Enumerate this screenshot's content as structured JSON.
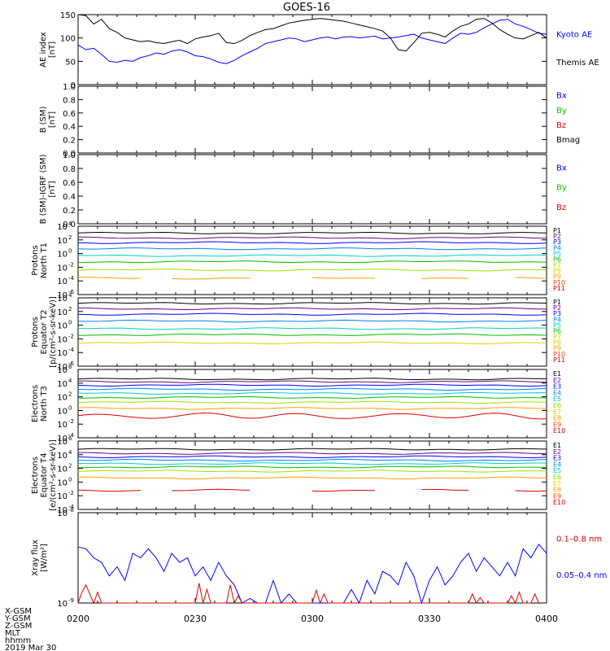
{
  "title": "GOES-16",
  "date_label": "2019 Mar 30",
  "footer_labels": [
    "X-GSM",
    "Y-GSM",
    "Z-GSM",
    "MLT",
    "hhmm"
  ],
  "x_ticks": [
    "0200",
    "0230",
    "0300",
    "0330",
    "0400"
  ],
  "colors": {
    "black": "#000000",
    "blue": "#0000ff",
    "green": "#00cc00",
    "red": "#dd0000"
  },
  "chart_data": [
    {
      "type": "line",
      "ylabel": "AE index",
      "yunit": "[nT]",
      "ylim": [
        0,
        150
      ],
      "yticks": [
        "0",
        "50",
        "100",
        "150"
      ],
      "x_range": [
        "0200",
        "0400"
      ],
      "legend": [
        {
          "label": "Kyoto AE",
          "color": "#0000ff"
        },
        {
          "label": "Themis AE",
          "color": "#000000"
        }
      ],
      "series": [
        {
          "name": "Kyoto AE",
          "color": "#0000ff",
          "x_minutes": [
            0,
            2,
            4,
            6,
            8,
            10,
            12,
            14,
            16,
            18,
            20,
            22,
            24,
            26,
            28,
            30,
            32,
            34,
            36,
            38,
            40,
            42,
            44,
            46,
            48,
            50,
            52,
            54,
            56,
            58,
            60,
            62,
            64,
            66,
            68,
            70,
            72,
            74,
            76,
            78,
            80,
            82,
            84,
            86,
            88,
            90,
            92,
            94,
            96,
            98,
            100,
            102,
            104,
            106,
            108,
            110,
            112,
            114,
            116,
            118,
            120
          ],
          "values": [
            85,
            75,
            78,
            65,
            50,
            48,
            52,
            50,
            58,
            62,
            68,
            65,
            72,
            75,
            70,
            62,
            60,
            55,
            48,
            45,
            52,
            62,
            70,
            78,
            88,
            92,
            96,
            100,
            98,
            92,
            96,
            100,
            102,
            98,
            102,
            103,
            100,
            102,
            104,
            98,
            100,
            102,
            105,
            108,
            100,
            96,
            92,
            88,
            100,
            110,
            108,
            112,
            122,
            130,
            138,
            140,
            130,
            125,
            118,
            110,
            108
          ]
        },
        {
          "name": "Themis AE",
          "color": "#000000",
          "x_minutes": [
            0,
            2,
            4,
            6,
            8,
            10,
            12,
            14,
            16,
            18,
            20,
            22,
            24,
            26,
            28,
            30,
            32,
            34,
            36,
            38,
            40,
            42,
            44,
            46,
            48,
            50,
            52,
            54,
            56,
            58,
            60,
            62,
            64,
            66,
            68,
            70,
            72,
            74,
            76,
            78,
            80,
            82,
            84,
            86,
            88,
            90,
            92,
            94,
            96,
            98,
            100,
            102,
            104,
            106,
            108,
            110,
            112,
            114,
            116,
            118,
            120
          ],
          "values": [
            150,
            148,
            130,
            140,
            120,
            112,
            100,
            96,
            92,
            94,
            90,
            88,
            92,
            95,
            88,
            98,
            102,
            105,
            110,
            90,
            88,
            95,
            105,
            112,
            118,
            120,
            126,
            132,
            135,
            138,
            140,
            142,
            140,
            138,
            136,
            132,
            128,
            124,
            120,
            115,
            100,
            75,
            72,
            90,
            110,
            112,
            108,
            102,
            115,
            125,
            130,
            140,
            142,
            132,
            118,
            108,
            100,
            98,
            105,
            112,
            100
          ]
        }
      ]
    },
    {
      "type": "line",
      "ylabel": "B (SM)",
      "yunit": "[nT]",
      "ylim": [
        0,
        1
      ],
      "yticks": [
        "0.0",
        "0.2",
        "0.4",
        "0.6",
        "0.8",
        "1.0"
      ],
      "legend": [
        {
          "label": "Bx",
          "color": "#0000ff"
        },
        {
          "label": "By",
          "color": "#00cc00"
        },
        {
          "label": "Bz",
          "color": "#dd0000"
        },
        {
          "label": "Bmag",
          "color": "#000000"
        }
      ],
      "series": []
    },
    {
      "type": "line",
      "ylabel": "B (SM)-IGRF (SM)",
      "yunit": "[nT]",
      "ylim": [
        0,
        1
      ],
      "yticks": [
        "0.0",
        "0.2",
        "0.4",
        "0.6",
        "0.8",
        "1.0"
      ],
      "legend": [
        {
          "label": "Bx",
          "color": "#0000ff"
        },
        {
          "label": "By",
          "color": "#00cc00"
        },
        {
          "label": "Bz",
          "color": "#dd0000"
        }
      ],
      "series": []
    },
    {
      "type": "line",
      "yscale": "log",
      "ylabel": "Protons",
      "ylabel2": "North T1",
      "yunit": "",
      "ylim_exp": [
        -6,
        4
      ],
      "yticks_exp": [
        -6,
        -4,
        -2,
        0,
        2,
        4
      ],
      "legend": [
        {
          "label": "P1",
          "color": "#000000"
        },
        {
          "label": "P2",
          "color": "#6a0080"
        },
        {
          "label": "P3",
          "color": "#0000ff"
        },
        {
          "label": "P4",
          "color": "#0080ff"
        },
        {
          "label": "P5",
          "color": "#00cccc"
        },
        {
          "label": "P6",
          "color": "#00bb00"
        },
        {
          "label": "P7",
          "color": "#a0e000"
        },
        {
          "label": "P8",
          "color": "#e0d000"
        },
        {
          "label": "P9",
          "color": "#ffa000"
        },
        {
          "label": "P10",
          "color": "#ff4000"
        },
        {
          "label": "P11",
          "color": "#cc0000"
        }
      ],
      "series": [
        {
          "name": "P1",
          "color": "#000000",
          "level": 3.0
        },
        {
          "name": "P2",
          "color": "#6a0080",
          "level": 2.3
        },
        {
          "name": "P3",
          "color": "#0000ff",
          "level": 1.6
        },
        {
          "name": "P4",
          "color": "#0080ff",
          "level": 0.7
        },
        {
          "name": "P5",
          "color": "#00cccc",
          "level": -0.3
        },
        {
          "name": "P6",
          "color": "#00bb00",
          "level": -1.2
        },
        {
          "name": "P7",
          "color": "#a0e000",
          "level": -2.4
        },
        {
          "name": "P8",
          "color": "#ffa000",
          "level": -3.6,
          "gappy": true
        }
      ]
    },
    {
      "type": "line",
      "yscale": "log",
      "ylabel": "Protons",
      "ylabel2": "Equator T2",
      "yunit": "[p/(cm²-s-sr-keV)]",
      "ylim_exp": [
        -6,
        4
      ],
      "yticks_exp": [
        -6,
        -4,
        -2,
        0,
        2,
        4
      ],
      "legend": [
        {
          "label": "P1",
          "color": "#000000"
        },
        {
          "label": "P2",
          "color": "#6a0080"
        },
        {
          "label": "P3",
          "color": "#0000ff"
        },
        {
          "label": "P4",
          "color": "#0080ff"
        },
        {
          "label": "P5",
          "color": "#00cccc"
        },
        {
          "label": "P6",
          "color": "#00bb00"
        },
        {
          "label": "P7",
          "color": "#a0e000"
        },
        {
          "label": "P8",
          "color": "#e0d000"
        },
        {
          "label": "P9",
          "color": "#ffa000"
        },
        {
          "label": "P10",
          "color": "#ff4000"
        },
        {
          "label": "P11",
          "color": "#cc0000"
        }
      ],
      "series": [
        {
          "name": "P1",
          "color": "#000000",
          "level": 3.2
        },
        {
          "name": "P2",
          "color": "#6a0080",
          "level": 2.4
        },
        {
          "name": "P3",
          "color": "#0000ff",
          "level": 1.6
        },
        {
          "name": "P4",
          "color": "#0080ff",
          "level": 0.6
        },
        {
          "name": "P5",
          "color": "#00cccc",
          "level": -0.5
        },
        {
          "name": "P6",
          "color": "#00bb00",
          "level": -1.4
        },
        {
          "name": "P7",
          "color": "#e0d000",
          "level": -2.6
        }
      ]
    },
    {
      "type": "line",
      "yscale": "log",
      "ylabel": "Electrons",
      "ylabel2": "North T3",
      "yunit": "",
      "ylim_exp": [
        -4,
        6
      ],
      "yticks_exp": [
        -4,
        -2,
        0,
        2,
        4,
        6
      ],
      "legend": [
        {
          "label": "E1",
          "color": "#000000"
        },
        {
          "label": "E2",
          "color": "#6a0080"
        },
        {
          "label": "E3",
          "color": "#0000ff"
        },
        {
          "label": "E4",
          "color": "#0080ff"
        },
        {
          "label": "E5",
          "color": "#00cccc"
        },
        {
          "label": "E6",
          "color": "#a0e000"
        },
        {
          "label": "E7",
          "color": "#e0d000"
        },
        {
          "label": "E8",
          "color": "#ffa000"
        },
        {
          "label": "E9",
          "color": "#ff4000"
        },
        {
          "label": "E10",
          "color": "#cc0000"
        }
      ],
      "series": [
        {
          "name": "E1",
          "color": "#000000",
          "level": 4.6
        },
        {
          "name": "E2",
          "color": "#6a0080",
          "level": 4.2
        },
        {
          "name": "E3",
          "color": "#0000ff",
          "level": 3.7
        },
        {
          "name": "E4",
          "color": "#0080ff",
          "level": 3.1
        },
        {
          "name": "E5",
          "color": "#00cccc",
          "level": 2.5
        },
        {
          "name": "E6",
          "color": "#00bb00",
          "level": 1.9
        },
        {
          "name": "E7",
          "color": "#a0e000",
          "level": 1.2
        },
        {
          "name": "E8",
          "color": "#ffa000",
          "level": 0.3
        },
        {
          "name": "E9",
          "color": "#dd0000",
          "level": -0.8,
          "wavy": true
        }
      ]
    },
    {
      "type": "line",
      "yscale": "log",
      "ylabel": "Electrons",
      "ylabel2": "Equator T4",
      "yunit": "[e/(cm²-s-sr-keV)]",
      "ylim_exp": [
        -4,
        6
      ],
      "yticks_exp": [
        -4,
        -2,
        0,
        2,
        4,
        6
      ],
      "legend": [
        {
          "label": "E1",
          "color": "#000000"
        },
        {
          "label": "E2",
          "color": "#6a0080"
        },
        {
          "label": "E3",
          "color": "#0000ff"
        },
        {
          "label": "E4",
          "color": "#0080ff"
        },
        {
          "label": "E5",
          "color": "#00cccc"
        },
        {
          "label": "E6",
          "color": "#a0e000"
        },
        {
          "label": "E7",
          "color": "#e0d000"
        },
        {
          "label": "E8",
          "color": "#ffa000"
        },
        {
          "label": "E9",
          "color": "#ff4000"
        },
        {
          "label": "E10",
          "color": "#cc0000"
        }
      ],
      "series": [
        {
          "name": "E1",
          "color": "#000000",
          "level": 4.8
        },
        {
          "name": "E2",
          "color": "#6a0080",
          "level": 4.2
        },
        {
          "name": "E3",
          "color": "#0000ff",
          "level": 3.7
        },
        {
          "name": "E4",
          "color": "#0080ff",
          "level": 3.2
        },
        {
          "name": "E5",
          "color": "#00cccc",
          "level": 2.7
        },
        {
          "name": "E6",
          "color": "#00bb00",
          "level": 2.2
        },
        {
          "name": "E7",
          "color": "#a0e000",
          "level": 1.6
        },
        {
          "name": "E8",
          "color": "#ffa000",
          "level": 0.6
        },
        {
          "name": "E9",
          "color": "#dd0000",
          "level": -1.2,
          "gappy": true
        }
      ]
    },
    {
      "type": "line",
      "yscale": "log",
      "ylabel": "Xray flux",
      "yunit": "[W/m²]",
      "ylim_exp": [
        -9,
        -8
      ],
      "yticks_exp": [
        -9,
        -8
      ],
      "legend": [
        {
          "label": "0.1–0.8 nm",
          "color": "#dd0000"
        },
        {
          "label": "0.05–0.4 nm",
          "color": "#0000ff"
        }
      ],
      "series": [
        {
          "name": "0.05–0.4 nm",
          "color": "#0000ff",
          "x_minutes": [
            0,
            2,
            4,
            6,
            8,
            10,
            12,
            14,
            16,
            18,
            20,
            22,
            24,
            26,
            28,
            30,
            32,
            34,
            36,
            38,
            40,
            42,
            44,
            46,
            48,
            50,
            52,
            54,
            56,
            58,
            60,
            62,
            64,
            66,
            68,
            70,
            72,
            74,
            76,
            78,
            80,
            82,
            84,
            86,
            88,
            90,
            92,
            94,
            96,
            98,
            100,
            102,
            104,
            106,
            108,
            110,
            112,
            114,
            116,
            118,
            120
          ],
          "values": [
            0.62,
            0.6,
            0.5,
            0.45,
            0.3,
            0.4,
            0.25,
            0.55,
            0.5,
            0.6,
            0.5,
            0.35,
            0.55,
            0.45,
            0.5,
            0.3,
            0.4,
            0.25,
            0.45,
            0.3,
            0.2,
            0.0,
            0.05,
            0.0,
            0.0,
            0.25,
            0.0,
            0.1,
            0.0,
            0.0,
            0.0,
            0.0,
            0.0,
            0.0,
            0.0,
            0.15,
            0.0,
            0.25,
            0.1,
            0.35,
            0.3,
            0.2,
            0.45,
            0.3,
            0.0,
            0.25,
            0.4,
            0.2,
            0.3,
            0.45,
            0.55,
            0.35,
            0.5,
            0.4,
            0.3,
            0.45,
            0.3,
            0.6,
            0.5,
            0.65,
            0.55
          ]
        },
        {
          "name": "0.1–0.8 nm",
          "color": "#dd0000",
          "x_minutes": [
            0,
            1,
            2,
            3,
            4,
            5,
            6,
            30,
            31,
            32,
            33,
            34,
            38,
            39,
            40,
            41,
            42,
            60,
            61,
            62,
            63,
            64,
            100,
            101,
            102,
            103,
            104,
            110,
            111,
            112,
            113,
            114,
            116,
            117,
            118
          ],
          "values": [
            0.0,
            0.12,
            0.2,
            0.1,
            0.0,
            0.12,
            0.0,
            0.0,
            0.22,
            0.0,
            0.15,
            0.0,
            0.0,
            0.2,
            0.0,
            0.08,
            0.0,
            0.0,
            0.14,
            0.0,
            0.1,
            0.0,
            0.0,
            0.1,
            0.0,
            0.06,
            0.0,
            0.0,
            0.08,
            0.0,
            0.12,
            0.0,
            0.0,
            0.1,
            0.0
          ]
        }
      ]
    }
  ]
}
